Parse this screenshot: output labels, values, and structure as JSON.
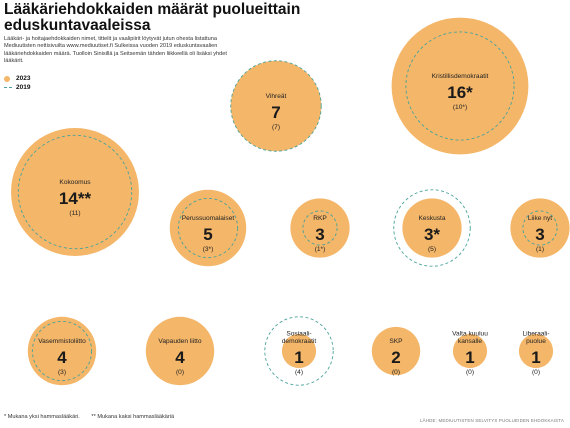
{
  "title": "Lääkäriehdokkaiden määrät puolueittain eduskuntavaaleissa",
  "intro": "Lääkäri- ja hoitajaehdokkaiden nimet, tittelit ja vaalipiirit löytyvät jutun ohesta listattuna Mediuutisten nettisivuilta www.mediuutiset.fi Sulkeissa vuoden 2019 eduskuntavaalien lääkäriehdokkaiden määrä. Tuolloin Sinisillä ja Seitsemän tähden liikkeellä oli lisäksi yhdet lääkärit.",
  "legend": {
    "current": "2023",
    "previous": "2019"
  },
  "footnotes": [
    "* Mukana yksi hammaslääkäri.",
    "** Mukana kaksi hammaslääkäriä"
  ],
  "source": "LÄHDE: MEDIUUTISTEN SELVITYS PUOLUEIDEN EHDOKKAISTA",
  "colors": {
    "circle_2023": "#f4b669",
    "circle_2019": "#4aa39b",
    "text": "#222222"
  },
  "chart_data": {
    "type": "bubble",
    "series": [
      {
        "name": "2023",
        "field": "value_2023"
      },
      {
        "name": "2019",
        "field": "value_2019"
      }
    ],
    "parties": [
      {
        "name": "Kristillisdemokraatit",
        "value_2023": 16,
        "label_2023": "16*",
        "value_2019": 10,
        "label_2019": "(10*)"
      },
      {
        "name": "Vihreät",
        "value_2023": 7,
        "label_2023": "7",
        "value_2019": 7,
        "label_2019": "(7)"
      },
      {
        "name": "Kokoomus",
        "value_2023": 14,
        "label_2023": "14**",
        "value_2019": 11,
        "label_2019": "(11)"
      },
      {
        "name": "Perussuomalaiset",
        "value_2023": 5,
        "label_2023": "5",
        "value_2019": 3,
        "label_2019": "(3*)"
      },
      {
        "name": "RKP",
        "value_2023": 3,
        "label_2023": "3",
        "value_2019": 1,
        "label_2019": "(1*)"
      },
      {
        "name": "Keskusta",
        "value_2023": 3,
        "label_2023": "3*",
        "value_2019": 5,
        "label_2019": "(5)"
      },
      {
        "name": "Liike nyt",
        "value_2023": 3,
        "label_2023": "3",
        "value_2019": 1,
        "label_2019": "(1)"
      },
      {
        "name": "Vasemmistoliitto",
        "value_2023": 4,
        "label_2023": "4",
        "value_2019": 3,
        "label_2019": "(3)"
      },
      {
        "name": "Vapauden liitto",
        "value_2023": 4,
        "label_2023": "4",
        "value_2019": 0,
        "label_2019": "(0)"
      },
      {
        "name": "Sosiaali- demokraatit",
        "value_2023": 1,
        "label_2023": "1",
        "value_2019": 4,
        "label_2019": "(4)"
      },
      {
        "name": "SKP",
        "value_2023": 2,
        "label_2023": "2",
        "value_2019": 0,
        "label_2019": "(0)"
      },
      {
        "name": "Valta kuuluu kansalle",
        "value_2023": 1,
        "label_2023": "1",
        "value_2019": 0,
        "label_2019": "(0)"
      },
      {
        "name": "Liberaali- puolue",
        "value_2023": 1,
        "label_2023": "1",
        "value_2019": 0,
        "label_2019": "(0)"
      }
    ]
  }
}
